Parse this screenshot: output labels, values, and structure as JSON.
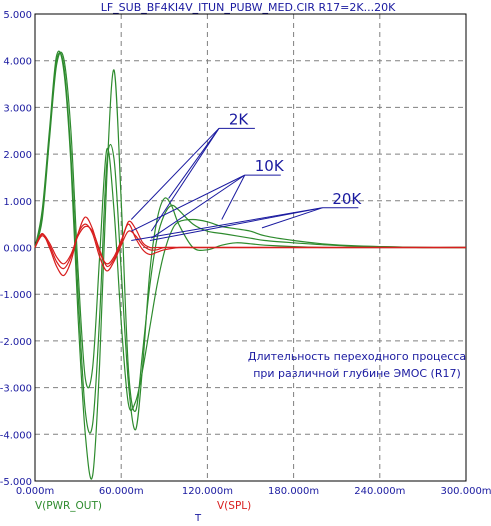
{
  "chart_data": {
    "type": "line",
    "title": "LF_SUB_BF4KI4V_ITUN_PUBW_MED.CIR R17=2K...20K",
    "xlabel": "T",
    "xlim": [
      0,
      0.3
    ],
    "ylim": [
      -5,
      5
    ],
    "grid": true,
    "x_ticks": [
      {
        "value": 0.0,
        "label": "0.000m"
      },
      {
        "value": 0.06,
        "label": "60.000m"
      },
      {
        "value": 0.12,
        "label": "120.000m"
      },
      {
        "value": 0.18,
        "label": "180.000m"
      },
      {
        "value": 0.24,
        "label": "240.000m"
      },
      {
        "value": 0.3,
        "label": "300.000m"
      }
    ],
    "y_ticks": [
      {
        "value": 5,
        "label": "5.000"
      },
      {
        "value": 4,
        "label": "4.000"
      },
      {
        "value": 3,
        "label": "3.000"
      },
      {
        "value": 2,
        "label": "2.000"
      },
      {
        "value": 1,
        "label": "1.000"
      },
      {
        "value": 0,
        "label": "0.000"
      },
      {
        "value": -1,
        "label": "-1.000"
      },
      {
        "value": -2,
        "label": "-2.000"
      },
      {
        "value": -3,
        "label": "-3.000"
      },
      {
        "value": -4,
        "label": "-4.000"
      },
      {
        "value": -5,
        "label": "-5.000"
      }
    ],
    "legend": [
      {
        "label": "V(PWR_OUT)",
        "color": "#2e8b2e"
      },
      {
        "label": "V(SPL)",
        "color": "#d81e1e"
      }
    ],
    "series": [
      {
        "legend": "V(PWR_OUT)",
        "color": "#2e8b2e",
        "x": [
          0,
          0.005,
          0.01,
          0.015,
          0.02,
          0.025,
          0.03,
          0.035,
          0.04,
          0.045,
          0.05,
          0.055,
          0.06,
          0.065,
          0.07,
          0.075,
          0.08,
          0.085,
          0.09,
          0.095,
          0.1,
          0.11,
          0.12,
          0.13,
          0.14,
          0.15,
          0.16,
          0.18,
          0.2,
          0.22,
          0.24,
          0.27,
          0.3
        ],
        "y": [
          0,
          0.6,
          2.3,
          3.9,
          4.05,
          2.5,
          -0.5,
          -2.8,
          -2.6,
          -0.2,
          2.1,
          0.8,
          -1.6,
          -3.35,
          -3.3,
          -2.6,
          -1.7,
          -0.8,
          -0.1,
          0.35,
          0.55,
          0.6,
          0.55,
          0.45,
          0.4,
          0.35,
          0.25,
          0.15,
          0.08,
          0.04,
          0.02,
          0.0,
          0.0
        ]
      },
      {
        "legend": "V(PWR_OUT)",
        "color": "#2e8b2e",
        "x": [
          0,
          0.005,
          0.01,
          0.015,
          0.02,
          0.025,
          0.03,
          0.035,
          0.04,
          0.045,
          0.05,
          0.055,
          0.06,
          0.065,
          0.07,
          0.075,
          0.08,
          0.085,
          0.09,
          0.095,
          0.1,
          0.11,
          0.12,
          0.13,
          0.14,
          0.15,
          0.16,
          0.18,
          0.2,
          0.22,
          0.24,
          0.27,
          0.3
        ],
        "y": [
          0,
          0.8,
          2.5,
          4.1,
          3.8,
          1.8,
          -1.5,
          -4.0,
          -4.9,
          -2.5,
          1.5,
          3.8,
          1.0,
          -2.6,
          -3.5,
          -2.2,
          -0.8,
          0.2,
          0.7,
          0.9,
          0.8,
          0.5,
          0.35,
          0.3,
          0.25,
          0.2,
          0.15,
          0.1,
          0.06,
          0.03,
          0.02,
          0.0,
          0.0
        ]
      },
      {
        "legend": "V(PWR_OUT)",
        "color": "#2e8b2e",
        "x": [
          0,
          0.005,
          0.01,
          0.015,
          0.02,
          0.025,
          0.03,
          0.035,
          0.04,
          0.045,
          0.05,
          0.055,
          0.06,
          0.065,
          0.07,
          0.075,
          0.08,
          0.085,
          0.09,
          0.095,
          0.1,
          0.11,
          0.12,
          0.13,
          0.14,
          0.15,
          0.16,
          0.18,
          0.2,
          0.22,
          0.24,
          0.27,
          0.3
        ],
        "y": [
          0,
          0.7,
          2.4,
          4.0,
          3.9,
          2.0,
          -1.0,
          -3.5,
          -3.8,
          -1.5,
          1.8,
          1.9,
          -0.5,
          -2.9,
          -3.9,
          -2.5,
          -0.5,
          0.6,
          1.05,
          0.9,
          0.5,
          0.0,
          -0.05,
          0.05,
          0.1,
          0.08,
          0.05,
          0.02,
          0.0,
          0.0,
          0.0,
          0.0,
          0.0
        ]
      },
      {
        "legend": "V(SPL)",
        "color": "#d81e1e",
        "x": [
          0,
          0.005,
          0.01,
          0.015,
          0.02,
          0.025,
          0.03,
          0.035,
          0.04,
          0.045,
          0.05,
          0.055,
          0.06,
          0.065,
          0.07,
          0.075,
          0.08,
          0.085,
          0.09,
          0.1,
          0.11,
          0.12,
          0.14,
          0.16,
          0.2,
          0.25,
          0.3
        ],
        "y": [
          0,
          0.3,
          0.0,
          -0.4,
          -0.6,
          -0.3,
          0.3,
          0.65,
          0.4,
          -0.1,
          -0.35,
          -0.2,
          0.15,
          0.5,
          0.2,
          -0.05,
          -0.15,
          -0.1,
          -0.05,
          0.0,
          0.0,
          0.0,
          0.0,
          0.0,
          0.0,
          0.0,
          0.0
        ]
      },
      {
        "legend": "V(SPL)",
        "color": "#d81e1e",
        "x": [
          0,
          0.005,
          0.01,
          0.015,
          0.02,
          0.025,
          0.03,
          0.035,
          0.04,
          0.045,
          0.05,
          0.055,
          0.06,
          0.065,
          0.07,
          0.075,
          0.08,
          0.085,
          0.09,
          0.1,
          0.11,
          0.12,
          0.14,
          0.16,
          0.2,
          0.25,
          0.3
        ],
        "y": [
          0,
          0.25,
          0.05,
          -0.3,
          -0.45,
          -0.2,
          0.3,
          0.5,
          0.3,
          -0.2,
          -0.5,
          -0.3,
          0.05,
          0.35,
          0.25,
          0.05,
          -0.05,
          -0.05,
          0.0,
          0.0,
          0.0,
          0.0,
          0.0,
          0.0,
          0.0,
          0.0,
          0.0
        ]
      },
      {
        "legend": "V(SPL)",
        "color": "#d81e1e",
        "x": [
          0,
          0.005,
          0.01,
          0.015,
          0.02,
          0.025,
          0.03,
          0.035,
          0.04,
          0.045,
          0.05,
          0.055,
          0.06,
          0.065,
          0.07,
          0.075,
          0.08,
          0.085,
          0.09,
          0.1,
          0.11,
          0.12,
          0.14,
          0.16,
          0.2,
          0.25,
          0.3
        ],
        "y": [
          0,
          0.28,
          0.1,
          -0.2,
          -0.35,
          -0.15,
          0.25,
          0.45,
          0.35,
          -0.05,
          -0.4,
          -0.25,
          0.1,
          0.55,
          0.4,
          0.1,
          0.0,
          0.0,
          0.0,
          0.0,
          0.0,
          0.0,
          0.0,
          0.0,
          0.0,
          0.0,
          0.0
        ]
      }
    ],
    "annotations": [
      {
        "label": "2K",
        "x": 0.128,
        "y": 2.55,
        "targets": [
          [
            0.067,
            0.6
          ],
          [
            0.081,
            0.35
          ],
          [
            0.093,
            1.05
          ]
        ]
      },
      {
        "label": "10K",
        "x": 0.146,
        "y": 1.55,
        "targets": [
          [
            0.067,
            0.35
          ],
          [
            0.081,
            0.2
          ],
          [
            0.13,
            0.6
          ]
        ]
      },
      {
        "label": "20K",
        "x": 0.2,
        "y": 0.85,
        "targets": [
          [
            0.067,
            0.15
          ],
          [
            0.08,
            0.15
          ],
          [
            0.158,
            0.42
          ]
        ]
      }
    ],
    "note": [
      "Длительность переходного процесса",
      "при различной глубине ЭМОС (R17)"
    ]
  }
}
